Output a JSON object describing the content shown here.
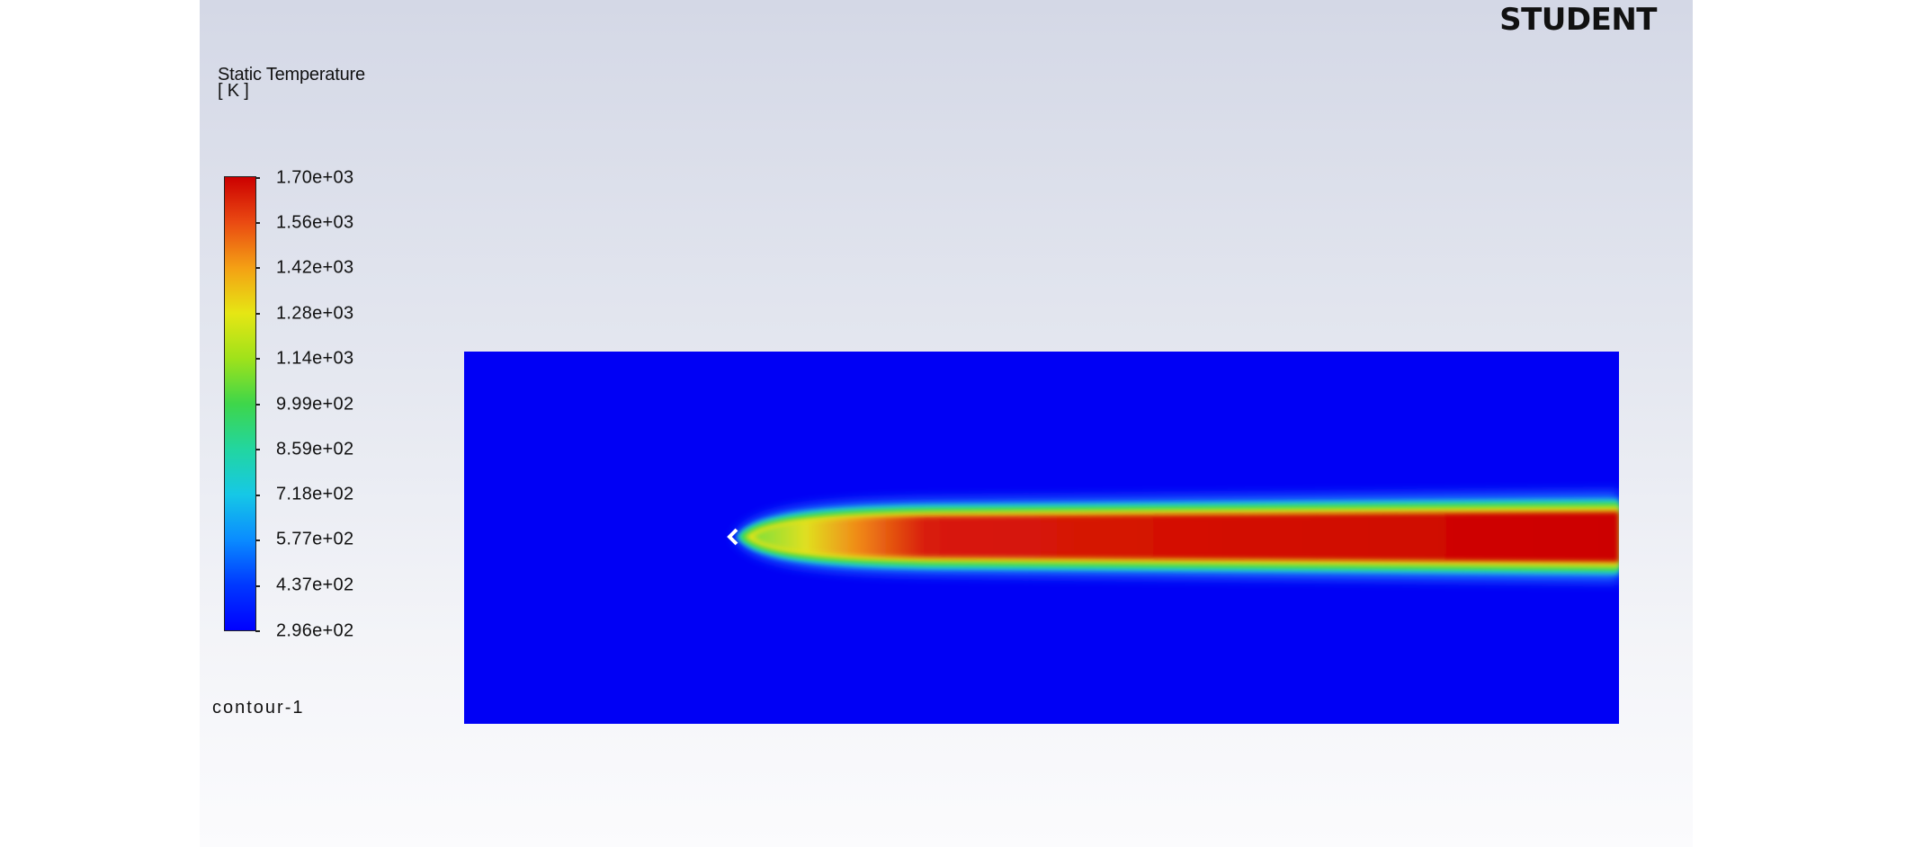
{
  "watermark": "STUDENT",
  "legend": {
    "title_line1": "Static Temperature",
    "title_line2": "[ K ]",
    "ticks": [
      "1.70e+03",
      "1.56e+03",
      "1.42e+03",
      "1.28e+03",
      "1.14e+03",
      "9.99e+02",
      "8.59e+02",
      "7.18e+02",
      "5.77e+02",
      "4.37e+02",
      "2.96e+02"
    ],
    "min_value": 296,
    "max_value": 1700
  },
  "contour_name": "contour-1",
  "colors": {
    "cold": "#0000f5",
    "hot": "#cc0000",
    "background_top": "#d4d8e6",
    "background_bottom": "#fbfbfd"
  }
}
